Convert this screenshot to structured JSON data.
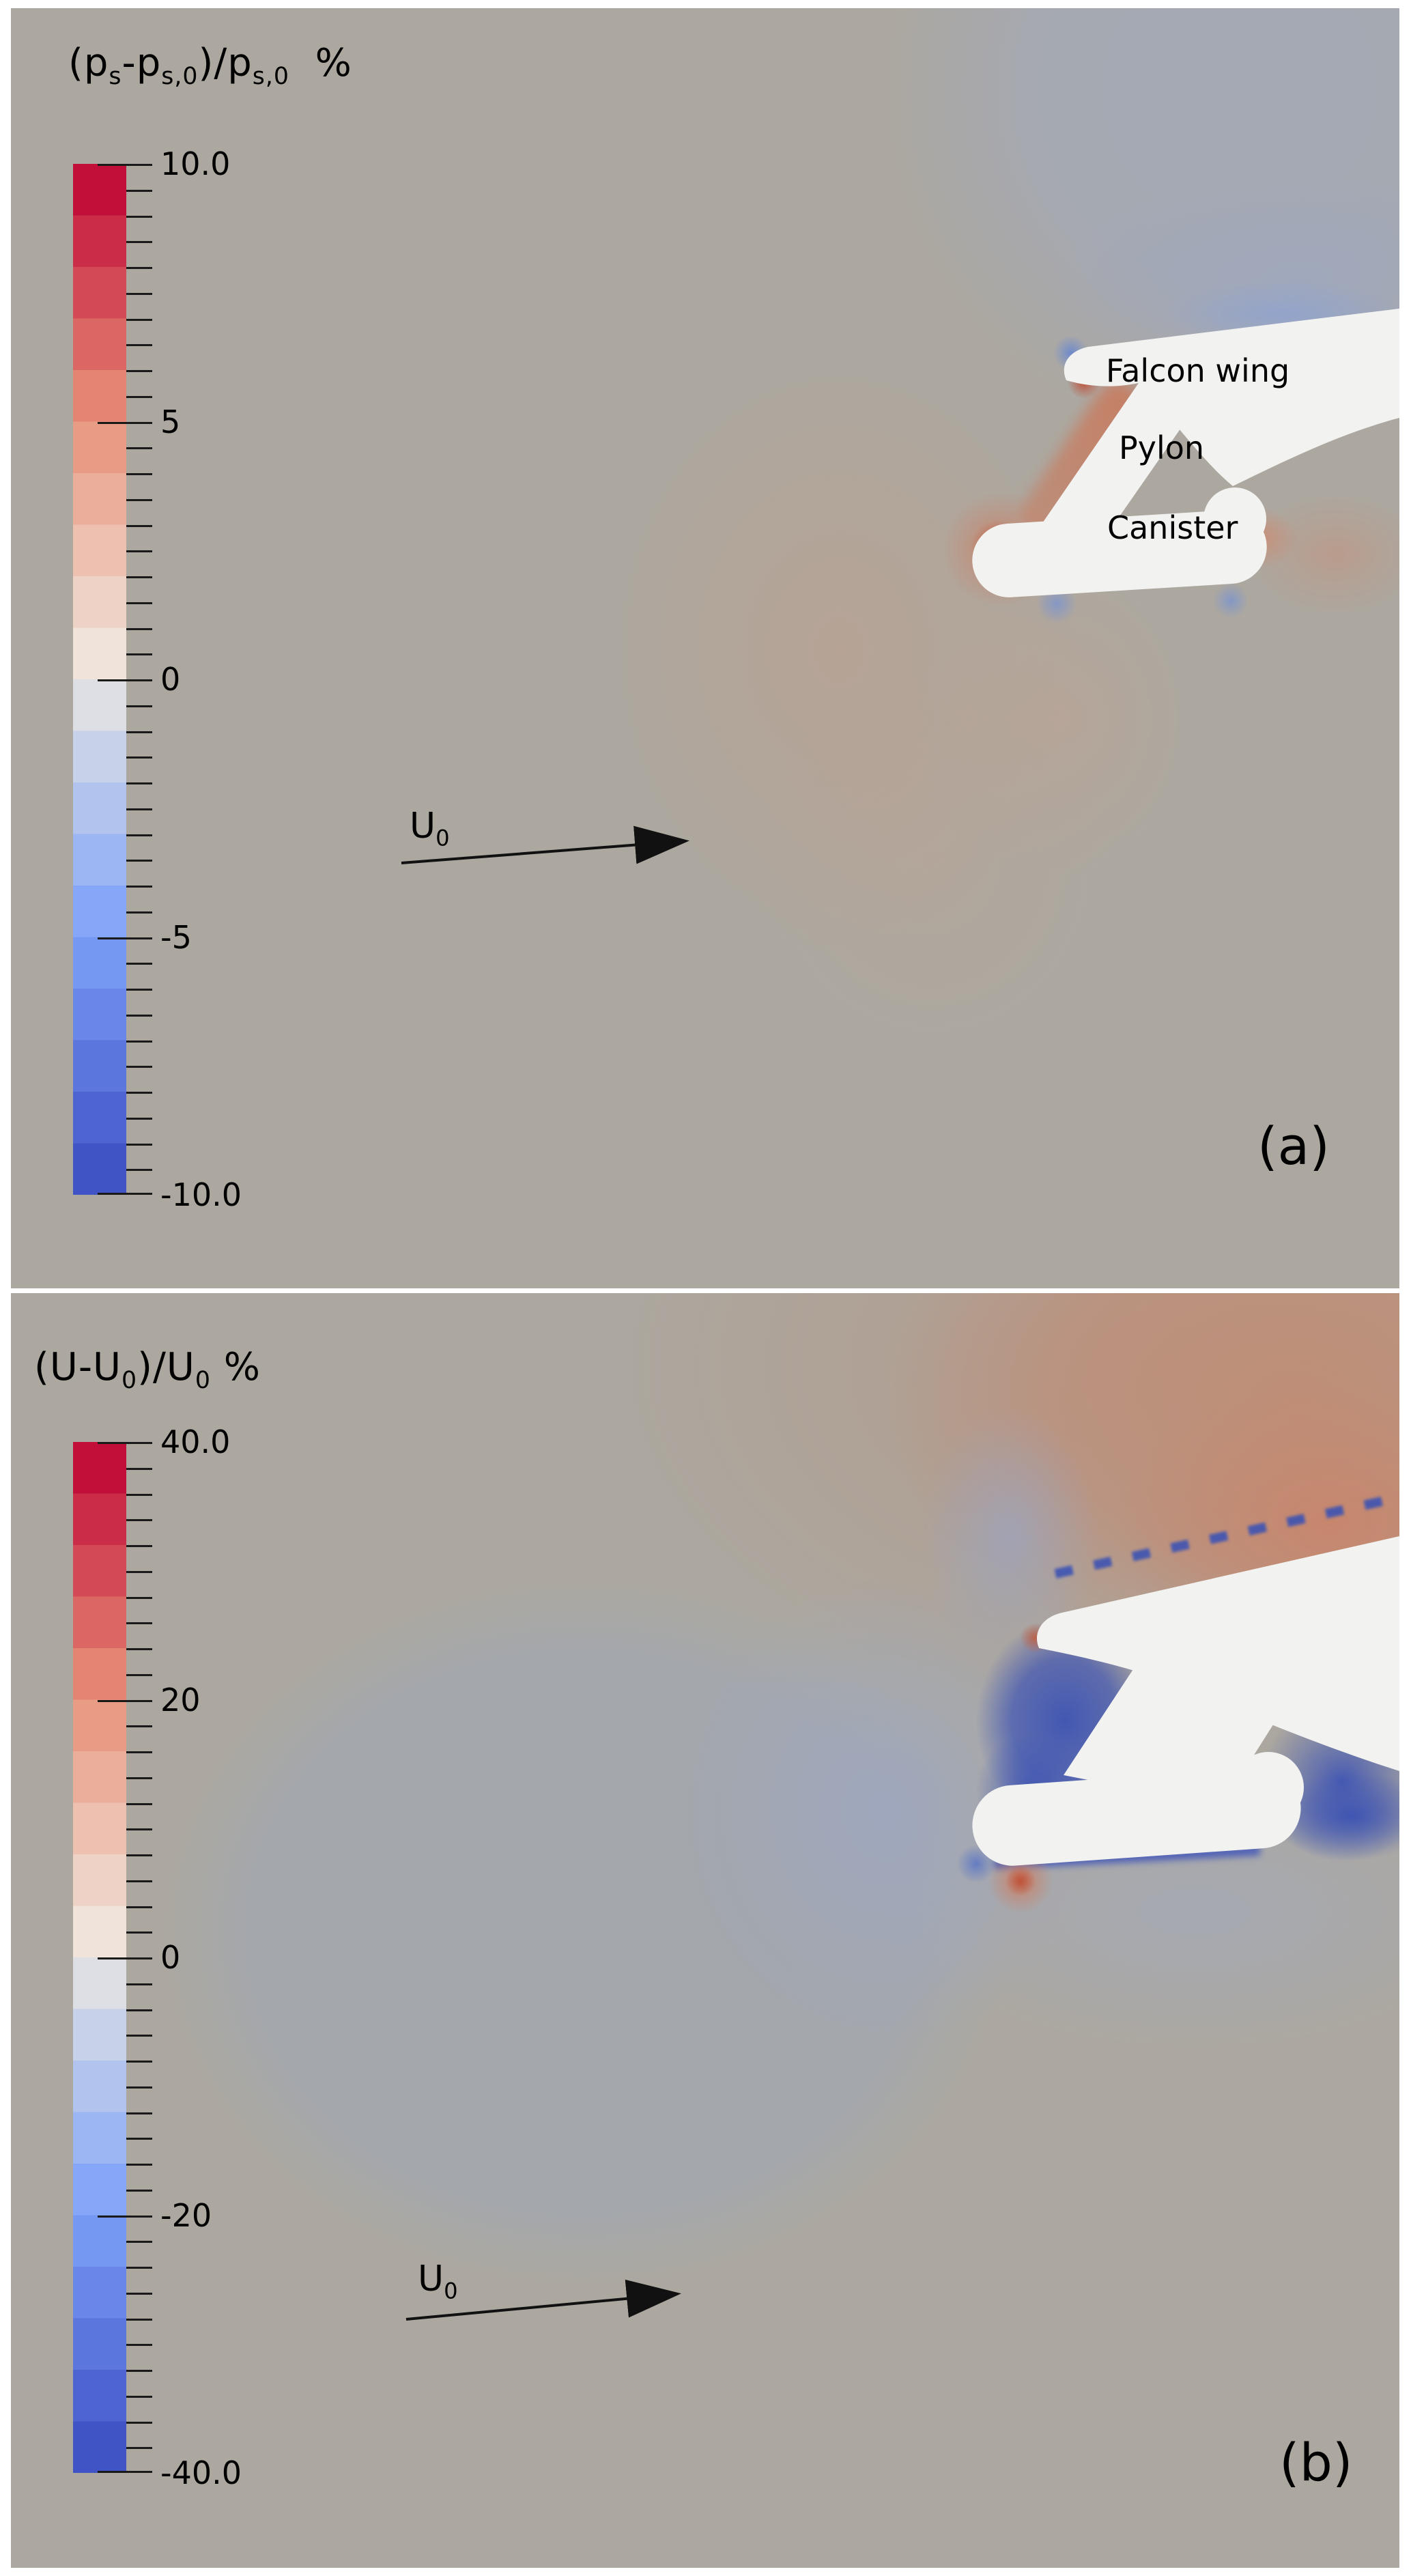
{
  "figure": {
    "background_color": "#FFFFFF",
    "panel_background_color": "#ACA8A0",
    "geometry_color": "#F2F2F0",
    "text_color": "#000000"
  },
  "panels": [
    {
      "letter": "(a)",
      "title_parts": [
        {
          "t": "(p"
        },
        {
          "t": "s",
          "sub": true
        },
        {
          "t": "-p"
        },
        {
          "t": "s,0",
          "sub": true
        },
        {
          "t": ")/p"
        },
        {
          "t": "s,0",
          "sub": true
        },
        {
          "t": "  %"
        }
      ],
      "flow_label_parts": [
        {
          "t": "U"
        },
        {
          "t": "0",
          "sub": true
        }
      ],
      "geometry_labels": {
        "wing": "Falcon wing",
        "pylon": "Pylon",
        "canister": "Canister"
      }
    },
    {
      "letter": "(b)",
      "title_parts": [
        {
          "t": "(U-U"
        },
        {
          "t": "0",
          "sub": true
        },
        {
          "t": ")/U"
        },
        {
          "t": "0",
          "sub": true
        },
        {
          "t": " %"
        }
      ],
      "flow_label_parts": [
        {
          "t": "U"
        },
        {
          "t": "0",
          "sub": true
        }
      ],
      "geometry_labels": {}
    }
  ],
  "chart_data": [
    {
      "type": "heatmap",
      "subtype": "CFD contour plot (static pressure deviation field)",
      "title": "(p_s - p_s,0) / p_s,0  %",
      "panel_letter": "(a)",
      "colorbar": {
        "max": 10.0,
        "min": -10.0,
        "major_tick_values": [
          10.0,
          5,
          0,
          -5,
          -10.0
        ],
        "major_tick_labels": [
          "10.0",
          "5",
          "0",
          "-5",
          "-10.0"
        ],
        "minor_tick_step": 0.5,
        "discrete_steps": 20,
        "colormap": "cool-to-warm diverging (blue -> light gray -> crimson)",
        "orientation": "vertical, max at top"
      },
      "annotations": [
        "Falcon wing",
        "Pylon",
        "Canister",
        "U_0",
        "(a)"
      ],
      "flow_arrow": {
        "label": "U_0",
        "direction": "left to right, slight upward incidence"
      },
      "features": [
        {
          "region": "upstream/left of wing nose",
          "value_pct": "+1 to +3",
          "appearance": "faint salmon pressure-rise lobe"
        },
        {
          "region": "pylon leading edge and wing nose underside",
          "value_pct": "+5 to +10",
          "appearance": "strong red stagnation band"
        },
        {
          "region": "canister nose (left end)",
          "value_pct": "+5 to +10",
          "appearance": "red stagnation spot"
        },
        {
          "region": "right of canister tail",
          "value_pct": "+2 to +5",
          "appearance": "salmon spot"
        },
        {
          "region": "above wing upper surface / top right",
          "value_pct": "-1 to -4",
          "appearance": "blue-gray suction fan"
        },
        {
          "region": "just above wing nose",
          "value_pct": "-5 to -10",
          "appearance": "small dark blue suction spot"
        },
        {
          "region": "below canister",
          "value_pct": "-2 to -5",
          "appearance": "small blue spots"
        }
      ]
    },
    {
      "type": "heatmap",
      "subtype": "CFD contour plot (velocity deviation field)",
      "title": "(U - U_0) / U_0 %",
      "panel_letter": "(b)",
      "colorbar": {
        "max": 40.0,
        "min": -40.0,
        "major_tick_values": [
          40.0,
          20,
          0,
          -20,
          -40.0
        ],
        "major_tick_labels": [
          "40.0",
          "20",
          "0",
          "-20",
          "-40.0"
        ],
        "minor_tick_step": 2.0,
        "discrete_steps": 20,
        "colormap": "cool-to-warm diverging (blue -> light gray -> crimson)",
        "orientation": "vertical, max at top"
      },
      "annotations": [
        "U_0",
        "(b)"
      ],
      "flow_arrow": {
        "label": "U_0",
        "direction": "left to right, slight upward incidence"
      },
      "features": [
        {
          "region": "large circular zone upstream/left of geometry",
          "value_pct": "-2 to -8",
          "appearance": "big blue-gray slowdown circle"
        },
        {
          "region": "between circle and geometry",
          "value_pct": "-8 to -15",
          "appearance": "light blue halo"
        },
        {
          "region": "above wing upper surface / top right",
          "value_pct": "+10 to +25",
          "appearance": "orange acceleration fan"
        },
        {
          "region": "under wing nose and along pylon",
          "value_pct": "-30 to -40",
          "appearance": "dark blue separated/blocked flow"
        },
        {
          "region": "right of pylon under wing",
          "value_pct": "-30 to -40",
          "appearance": "dark blue wedge"
        },
        {
          "region": "canister wake (right of tail)",
          "value_pct": "-30 to -40",
          "appearance": "dark blue wake"
        },
        {
          "region": "below canister left end",
          "value_pct": "+10 to +25",
          "appearance": "salmon acceleration spot"
        }
      ]
    }
  ],
  "colormap_anchors": [
    {
      "t": -1.0,
      "c": "#3B4CC0"
    },
    {
      "t": -0.5,
      "c": "#7BA0F9"
    },
    {
      "t": -0.06,
      "c": "#DCDEE6"
    },
    {
      "t": 0.0,
      "c": "#E9E6E2"
    },
    {
      "t": 0.06,
      "c": "#F0E2D8"
    },
    {
      "t": 0.5,
      "c": "#E8937A"
    },
    {
      "t": 1.0,
      "c": "#BE0032"
    }
  ]
}
